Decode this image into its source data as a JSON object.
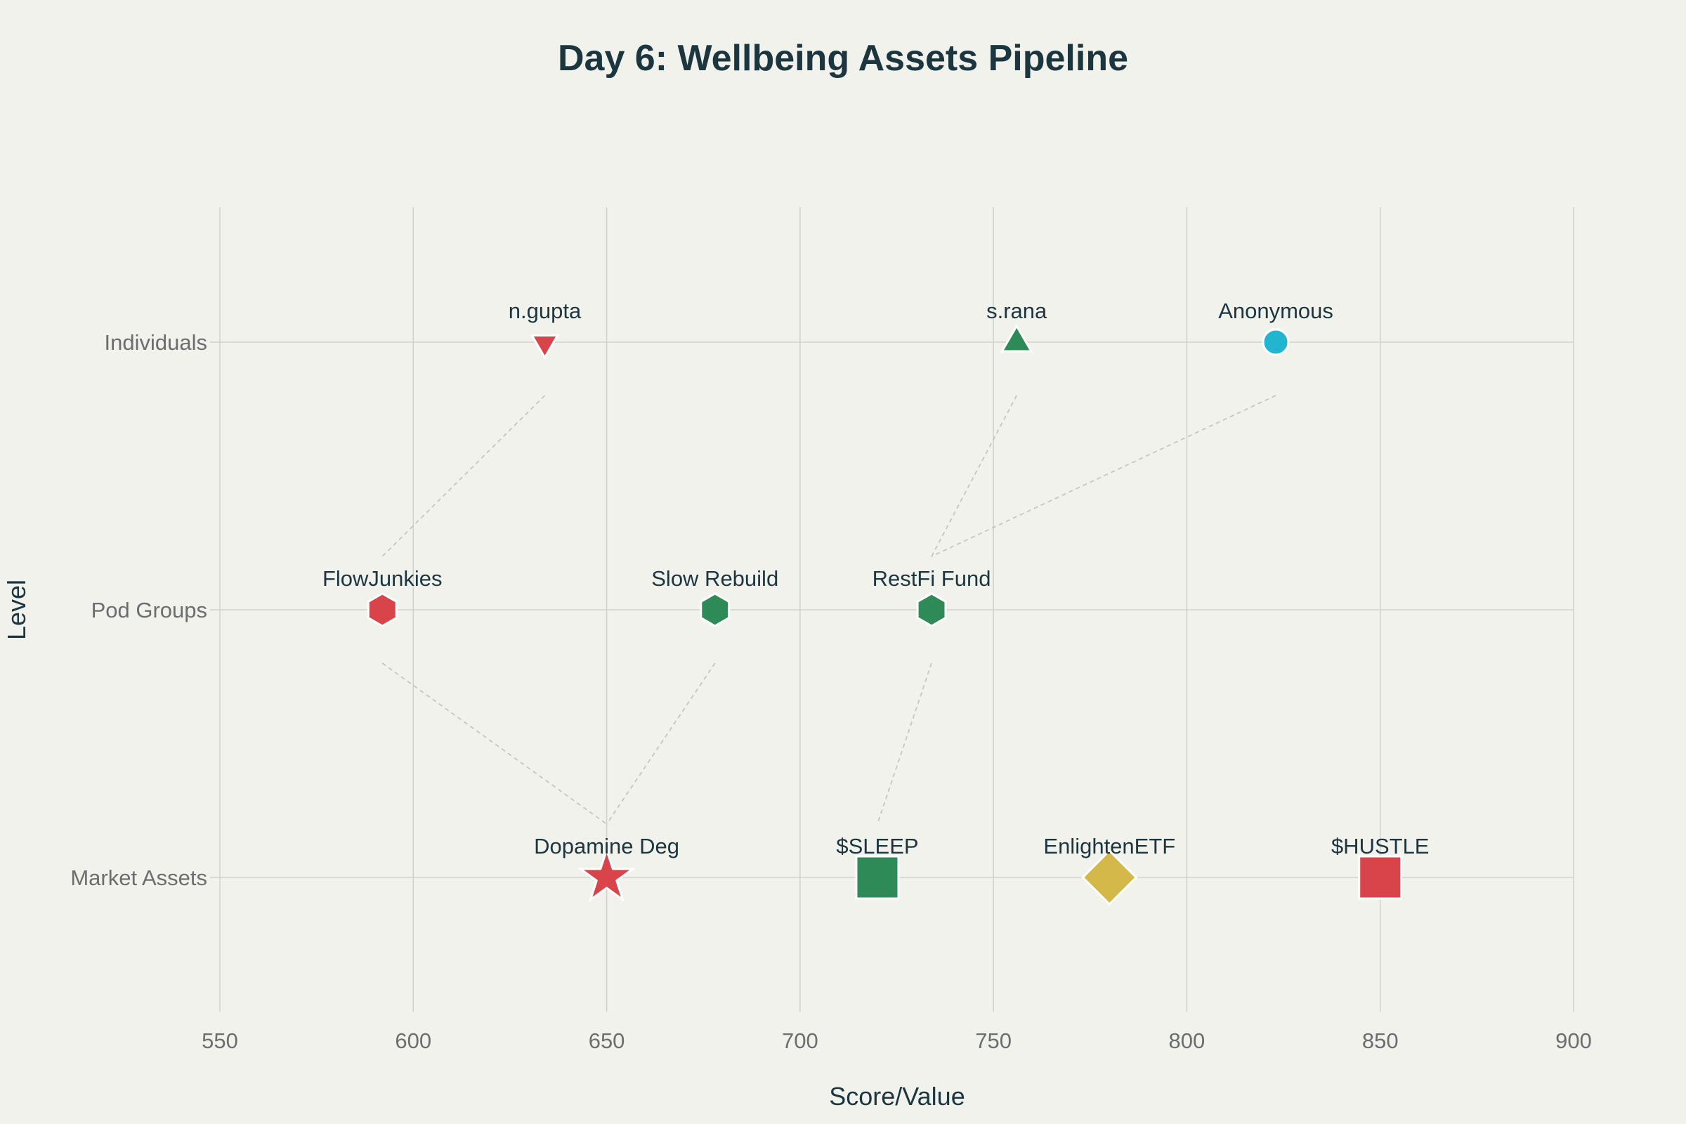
{
  "chart_data": {
    "type": "scatter",
    "title": "Day 6: Wellbeing Assets Pipeline",
    "xlabel": "Score/Value",
    "ylabel": "Level",
    "xlim": [
      550,
      900
    ],
    "xticks": [
      550,
      600,
      650,
      700,
      750,
      800,
      850,
      900
    ],
    "categories": [
      "Market Assets",
      "Pod Groups",
      "Individuals"
    ],
    "points": [
      {
        "name": "n.gupta",
        "x": 634,
        "level": "Individuals",
        "marker": "triangle-down",
        "color": "#d9434a"
      },
      {
        "name": "s.rana",
        "x": 756,
        "level": "Individuals",
        "marker": "triangle-up",
        "color": "#2e8b57"
      },
      {
        "name": "Anonymous",
        "x": 823,
        "level": "Individuals",
        "marker": "circle",
        "color": "#22b5cf"
      },
      {
        "name": "FlowJunkies",
        "x": 592,
        "level": "Pod Groups",
        "marker": "hexagon",
        "color": "#d9434a"
      },
      {
        "name": "Slow Rebuild",
        "x": 678,
        "level": "Pod Groups",
        "marker": "hexagon",
        "color": "#2e8b57"
      },
      {
        "name": "RestFi Fund",
        "x": 734,
        "level": "Pod Groups",
        "marker": "hexagon",
        "color": "#2e8b57"
      },
      {
        "name": "Dopamine Deg",
        "x": 650,
        "level": "Market Assets",
        "marker": "star",
        "color": "#d9434a"
      },
      {
        "name": "$SLEEP",
        "x": 720,
        "level": "Market Assets",
        "marker": "square",
        "color": "#2e8b57"
      },
      {
        "name": "EnlightenETF",
        "x": 780,
        "level": "Market Assets",
        "marker": "diamond",
        "color": "#d4b84a"
      },
      {
        "name": "$HUSTLE",
        "x": 850,
        "level": "Market Assets",
        "marker": "square",
        "color": "#d9434a"
      }
    ],
    "connections": [
      {
        "from": "n.gupta",
        "to": "FlowJunkies"
      },
      {
        "from": "s.rana",
        "to": "RestFi Fund"
      },
      {
        "from": "Anonymous",
        "to": "RestFi Fund"
      },
      {
        "from": "FlowJunkies",
        "to": "Dopamine Deg"
      },
      {
        "from": "Slow Rebuild",
        "to": "Dopamine Deg"
      },
      {
        "from": "RestFi Fund",
        "to": "$SLEEP"
      }
    ],
    "grid": true,
    "legend": "none",
    "colors": {
      "background": "#f2f2ed",
      "title": "#1c3640",
      "tick": "#6b6e6e",
      "grid": "#cfd1cc"
    }
  }
}
